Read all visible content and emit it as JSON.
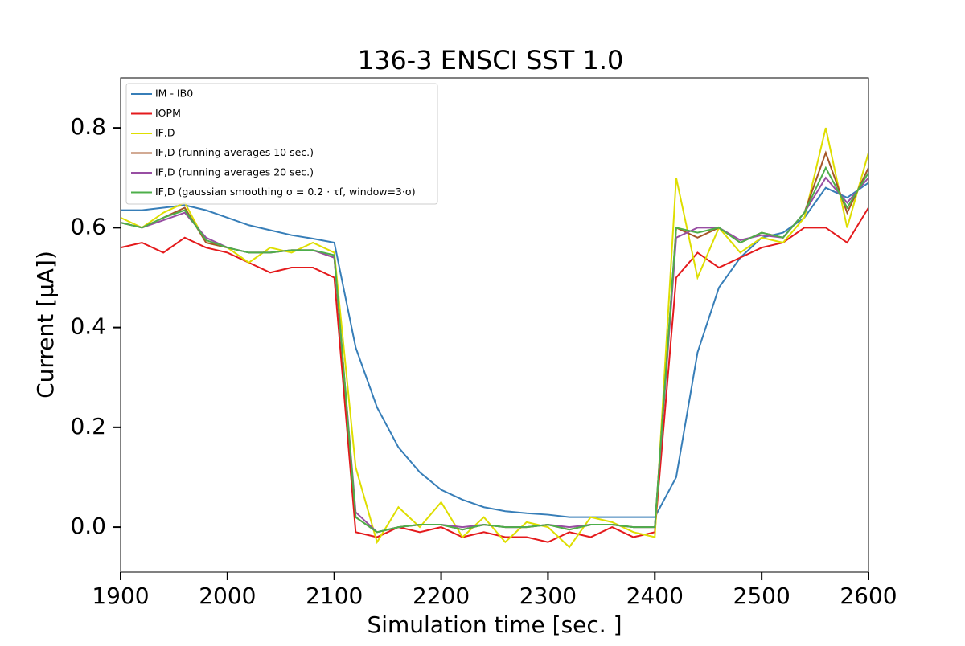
{
  "chart_data": {
    "type": "line",
    "title": "136-3 ENSCI SST 1.0",
    "x_label": "Simulation time [sec. ]",
    "y_label": "Current [μA])",
    "x": [
      1900,
      1920,
      1940,
      1960,
      1980,
      2000,
      2020,
      2040,
      2060,
      2080,
      2100,
      2120,
      2140,
      2160,
      2180,
      2200,
      2220,
      2240,
      2260,
      2280,
      2300,
      2320,
      2340,
      2360,
      2380,
      2400,
      2420,
      2440,
      2460,
      2480,
      2500,
      2520,
      2540,
      2560,
      2580,
      2600
    ],
    "series": [
      {
        "name": "IM - IB0",
        "color": "#377eb8",
        "values": [
          0.635,
          0.635,
          0.64,
          0.645,
          0.635,
          0.62,
          0.605,
          0.595,
          0.585,
          0.578,
          0.57,
          0.36,
          0.24,
          0.16,
          0.11,
          0.075,
          0.055,
          0.04,
          0.032,
          0.028,
          0.025,
          0.02,
          0.02,
          0.02,
          0.02,
          0.02,
          0.1,
          0.35,
          0.48,
          0.54,
          0.58,
          0.59,
          0.62,
          0.68,
          0.66,
          0.69
        ]
      },
      {
        "name": "IOPM",
        "color": "#e41a1c",
        "values": [
          0.56,
          0.57,
          0.55,
          0.58,
          0.56,
          0.55,
          0.53,
          0.51,
          0.52,
          0.52,
          0.5,
          -0.01,
          -0.02,
          0,
          -0.01,
          0,
          -0.02,
          -0.01,
          -0.02,
          -0.02,
          -0.03,
          -0.01,
          -0.02,
          0,
          -0.02,
          -0.01,
          0.5,
          0.55,
          0.52,
          0.54,
          0.56,
          0.57,
          0.6,
          0.6,
          0.57,
          0.64
        ]
      },
      {
        "name": "IF,D",
        "color": "#dede00",
        "values": [
          0.62,
          0.6,
          0.63,
          0.65,
          0.57,
          0.56,
          0.53,
          0.56,
          0.55,
          0.57,
          0.55,
          0.12,
          -0.03,
          0.04,
          0,
          0.05,
          -0.02,
          0.02,
          -0.03,
          0.01,
          0,
          -0.04,
          0.02,
          0.01,
          -0.01,
          -0.02,
          0.7,
          0.5,
          0.6,
          0.55,
          0.58,
          0.57,
          0.62,
          0.8,
          0.6,
          0.75
        ]
      },
      {
        "name": "IF,D (running averages 10 sec.)",
        "color": "#a65628",
        "values": [
          0.61,
          0.6,
          0.62,
          0.64,
          0.57,
          0.56,
          0.55,
          0.55,
          0.555,
          0.555,
          0.54,
          0.02,
          -0.01,
          0,
          0.005,
          0.005,
          -0.005,
          0.005,
          0,
          0,
          0.005,
          -0.005,
          0.005,
          0.005,
          0,
          0,
          0.6,
          0.58,
          0.6,
          0.57,
          0.59,
          0.58,
          0.63,
          0.75,
          0.63,
          0.72
        ]
      },
      {
        "name": "IF,D (running averages 20 sec.)",
        "color": "#984ea3",
        "values": [
          0.61,
          0.6,
          0.615,
          0.63,
          0.58,
          0.56,
          0.55,
          0.55,
          0.555,
          0.555,
          0.54,
          0.03,
          -0.01,
          0,
          0.005,
          0.005,
          0,
          0.005,
          0,
          0,
          0.005,
          0,
          0.005,
          0.005,
          0,
          0,
          0.58,
          0.6,
          0.6,
          0.575,
          0.585,
          0.58,
          0.63,
          0.7,
          0.65,
          0.7
        ]
      },
      {
        "name": "IF,D (gaussian smoothing σ = 0.2 · τf, window=3·σ)",
        "color": "#4daf4a",
        "values": [
          0.61,
          0.6,
          0.62,
          0.635,
          0.575,
          0.56,
          0.55,
          0.55,
          0.555,
          0.555,
          0.545,
          0.02,
          -0.01,
          0,
          0.005,
          0.005,
          -0.005,
          0.005,
          0,
          0,
          0.005,
          -0.005,
          0.005,
          0.005,
          0,
          0,
          0.6,
          0.59,
          0.6,
          0.57,
          0.59,
          0.58,
          0.63,
          0.72,
          0.64,
          0.71
        ]
      }
    ],
    "xlim": [
      1900,
      2600
    ],
    "ylim": [
      -0.09,
      0.9
    ],
    "xticks": [
      1900,
      2000,
      2100,
      2200,
      2300,
      2400,
      2500,
      2600
    ],
    "yticks": [
      {
        "value": 0,
        "label": "0.0"
      },
      0.2,
      0.4,
      0.6,
      0.8
    ],
    "grid": false,
    "legend": "upper left"
  }
}
